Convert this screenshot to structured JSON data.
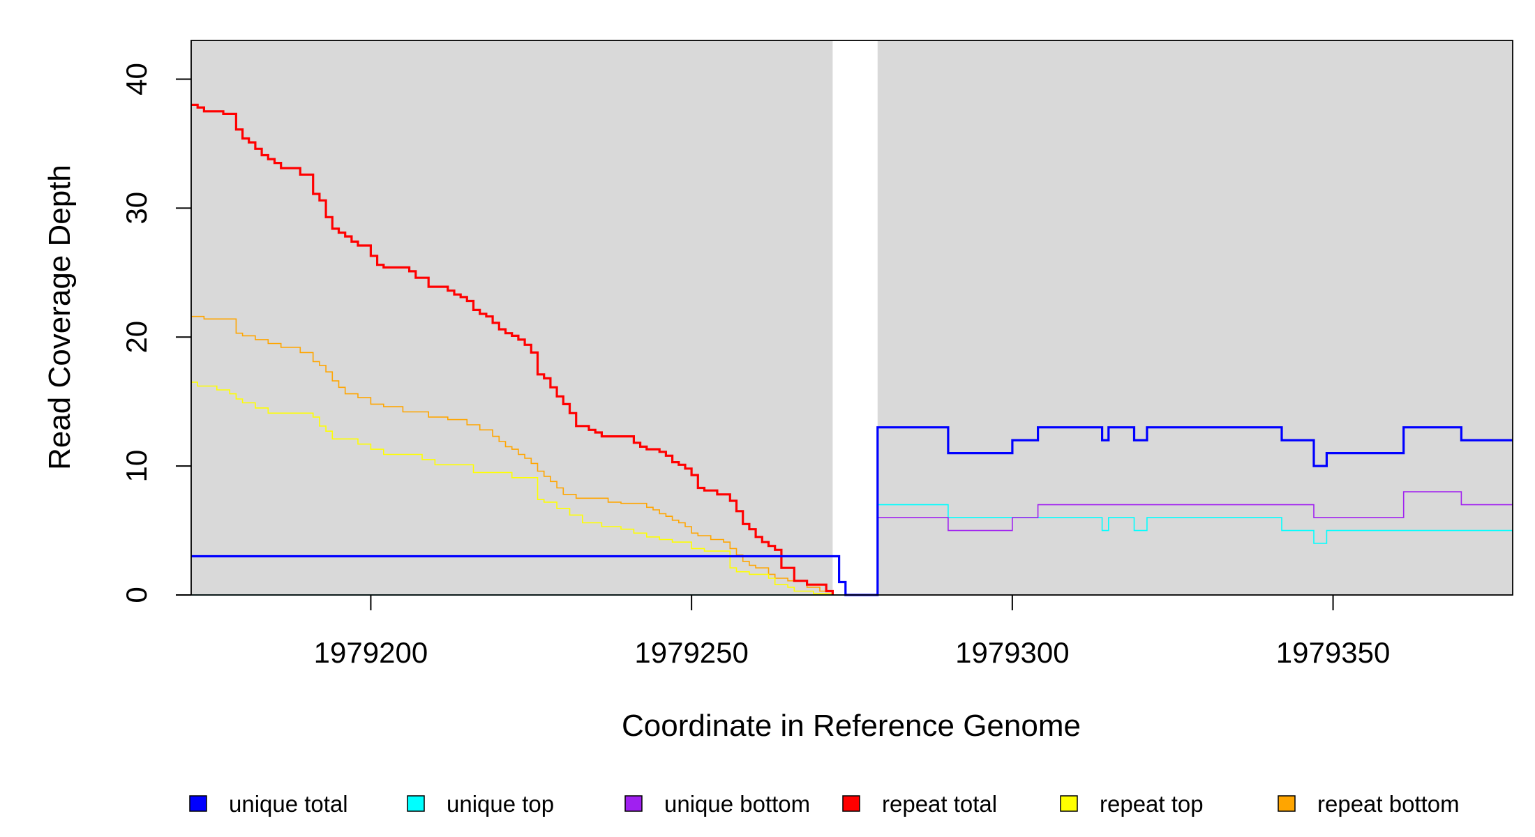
{
  "chart_data": {
    "type": "line",
    "xlabel": "Coordinate in Reference Genome",
    "ylabel": "Read Coverage Depth",
    "xlim": [
      1979172,
      1979378
    ],
    "ylim": [
      0,
      43
    ],
    "x_ticks": [
      1979200,
      1979250,
      1979300,
      1979350
    ],
    "x_tick_labels": [
      "1979200",
      "1979250",
      "1979300",
      "1979350"
    ],
    "y_ticks": [
      0,
      10,
      20,
      30,
      40
    ],
    "y_tick_labels": [
      "0",
      "10",
      "20",
      "30",
      "40"
    ],
    "shaded_regions": [
      [
        1979172,
        1979272
      ],
      [
        1979279,
        1979378
      ]
    ],
    "background_color": "#d9d9d9",
    "legend_position": "bottom",
    "legend": [
      {
        "label": "unique total",
        "color": "#0000ff"
      },
      {
        "label": "unique top",
        "color": "#00ffff"
      },
      {
        "label": "unique bottom",
        "color": "#a020f0"
      },
      {
        "label": "repeat total",
        "color": "#ff0000"
      },
      {
        "label": "repeat top",
        "color": "#ffff00"
      },
      {
        "label": "repeat bottom",
        "color": "#ffa500"
      }
    ],
    "series": [
      {
        "name": "unique total",
        "color": "#0000ff",
        "step": true,
        "x": [
          1979172,
          1979272,
          1979273,
          1979274,
          1979279,
          1979290,
          1979300,
          1979304,
          1979314,
          1979315,
          1979319,
          1979321,
          1979342,
          1979347,
          1979349,
          1979361,
          1979370,
          1979378
        ],
        "y": [
          3,
          3,
          1,
          0,
          13,
          11,
          12,
          13,
          12,
          13,
          12,
          13,
          12,
          10,
          11,
          13,
          12,
          12
        ]
      },
      {
        "name": "unique top",
        "color": "#00ffff",
        "step": true,
        "x": [
          1979172,
          1979272,
          1979279,
          1979290,
          1979314,
          1979315,
          1979319,
          1979321,
          1979342,
          1979347,
          1979349,
          1979378
        ],
        "y": [
          0,
          0,
          7,
          6,
          5,
          6,
          5,
          6,
          5,
          4,
          5,
          5
        ]
      },
      {
        "name": "unique bottom",
        "color": "#a020f0",
        "step": true,
        "x": [
          1979172,
          1979272,
          1979273,
          1979274,
          1979279,
          1979290,
          1979300,
          1979304,
          1979347,
          1979361,
          1979370,
          1979378
        ],
        "y": [
          3,
          3,
          1,
          0,
          6,
          5,
          6,
          7,
          6,
          8,
          7,
          7
        ]
      },
      {
        "name": "repeat total",
        "color": "#ff0000",
        "step": true,
        "x": [
          1979172,
          1979173,
          1979174,
          1979177,
          1979179,
          1979180,
          1979181,
          1979182,
          1979183,
          1979184,
          1979185,
          1979186,
          1979189,
          1979191,
          1979192,
          1979193,
          1979194,
          1979195,
          1979196,
          1979197,
          1979198,
          1979200,
          1979201,
          1979202,
          1979206,
          1979207,
          1979209,
          1979212,
          1979213,
          1979214,
          1979215,
          1979216,
          1979217,
          1979218,
          1979219,
          1979220,
          1979221,
          1979222,
          1979223,
          1979224,
          1979225,
          1979226,
          1979227,
          1979228,
          1979229,
          1979230,
          1979231,
          1979232,
          1979234,
          1979235,
          1979236,
          1979238,
          1979241,
          1979242,
          1979243,
          1979245,
          1979246,
          1979247,
          1979248,
          1979249,
          1979250,
          1979251,
          1979252,
          1979254,
          1979256,
          1979257,
          1979258,
          1979259,
          1979260,
          1979261,
          1979262,
          1979263,
          1979264,
          1979266,
          1979268,
          1979269,
          1979271,
          1979272
        ],
        "y": [
          38,
          37.8,
          37.5,
          37.3,
          36.1,
          35.4,
          35.1,
          34.6,
          34.1,
          33.8,
          33.5,
          33.1,
          32.6,
          31.1,
          30.6,
          29.3,
          28.4,
          28.1,
          27.8,
          27.4,
          27.1,
          26.3,
          25.6,
          25.4,
          25.1,
          24.6,
          23.9,
          23.6,
          23.3,
          23.1,
          22.8,
          22.1,
          21.8,
          21.6,
          21.1,
          20.6,
          20.3,
          20.1,
          19.8,
          19.4,
          18.8,
          17.1,
          16.8,
          16.1,
          15.4,
          14.8,
          14.1,
          13.1,
          12.8,
          12.6,
          12.3,
          12.3,
          11.8,
          11.5,
          11.3,
          11.1,
          10.8,
          10.3,
          10.1,
          9.8,
          9.3,
          8.3,
          8.1,
          7.8,
          7.3,
          6.5,
          5.5,
          5.1,
          4.5,
          4.1,
          3.8,
          3.5,
          2.1,
          1.1,
          0.8,
          0.8,
          0.3,
          0
        ]
      },
      {
        "name": "repeat top",
        "color": "#ffff00",
        "step": true,
        "x": [
          1979172,
          1979173,
          1979176,
          1979178,
          1979179,
          1979180,
          1979182,
          1979184,
          1979191,
          1979192,
          1979193,
          1979194,
          1979198,
          1979200,
          1979202,
          1979208,
          1979210,
          1979216,
          1979222,
          1979226,
          1979227,
          1979229,
          1979231,
          1979233,
          1979236,
          1979239,
          1979241,
          1979243,
          1979245,
          1979247,
          1979250,
          1979252,
          1979256,
          1979257,
          1979259,
          1979262,
          1979263,
          1979265,
          1979266,
          1979269,
          1979272
        ],
        "y": [
          16.5,
          16.2,
          15.9,
          15.6,
          15.2,
          14.9,
          14.5,
          14.1,
          13.8,
          13.1,
          12.7,
          12.1,
          11.7,
          11.3,
          10.9,
          10.5,
          10.1,
          9.5,
          9.1,
          7.4,
          7.2,
          6.7,
          6.2,
          5.6,
          5.3,
          5.1,
          4.8,
          4.5,
          4.3,
          4.1,
          3.6,
          3.4,
          2.1,
          1.8,
          1.6,
          1.3,
          0.8,
          0.6,
          0.3,
          0.1,
          0
        ]
      },
      {
        "name": "repeat bottom",
        "color": "#ffa500",
        "step": true,
        "x": [
          1979172,
          1979174,
          1979179,
          1979180,
          1979182,
          1979184,
          1979186,
          1979189,
          1979191,
          1979192,
          1979193,
          1979194,
          1979195,
          1979196,
          1979198,
          1979200,
          1979202,
          1979205,
          1979209,
          1979212,
          1979215,
          1979217,
          1979219,
          1979220,
          1979221,
          1979222,
          1979223,
          1979224,
          1979225,
          1979226,
          1979227,
          1979228,
          1979229,
          1979230,
          1979232,
          1979237,
          1979239,
          1979243,
          1979244,
          1979245,
          1979246,
          1979247,
          1979248,
          1979249,
          1979250,
          1979251,
          1979253,
          1979255,
          1979256,
          1979257,
          1979258,
          1979259,
          1979260,
          1979262,
          1979263,
          1979265,
          1979268,
          1979270,
          1979272
        ],
        "y": [
          21.6,
          21.4,
          20.3,
          20.1,
          19.8,
          19.5,
          19.2,
          18.8,
          18.1,
          17.8,
          17.3,
          16.6,
          16.1,
          15.6,
          15.3,
          14.8,
          14.6,
          14.2,
          13.8,
          13.6,
          13.2,
          12.8,
          12.3,
          11.9,
          11.5,
          11.3,
          10.9,
          10.6,
          10.2,
          9.6,
          9.2,
          8.8,
          8.3,
          7.8,
          7.5,
          7.2,
          7.1,
          6.8,
          6.6,
          6.3,
          6.1,
          5.8,
          5.6,
          5.3,
          4.8,
          4.6,
          4.3,
          4.1,
          3.6,
          3.1,
          2.6,
          2.3,
          2.1,
          1.6,
          1.3,
          1.1,
          0.6,
          0.3,
          0
        ]
      }
    ]
  }
}
